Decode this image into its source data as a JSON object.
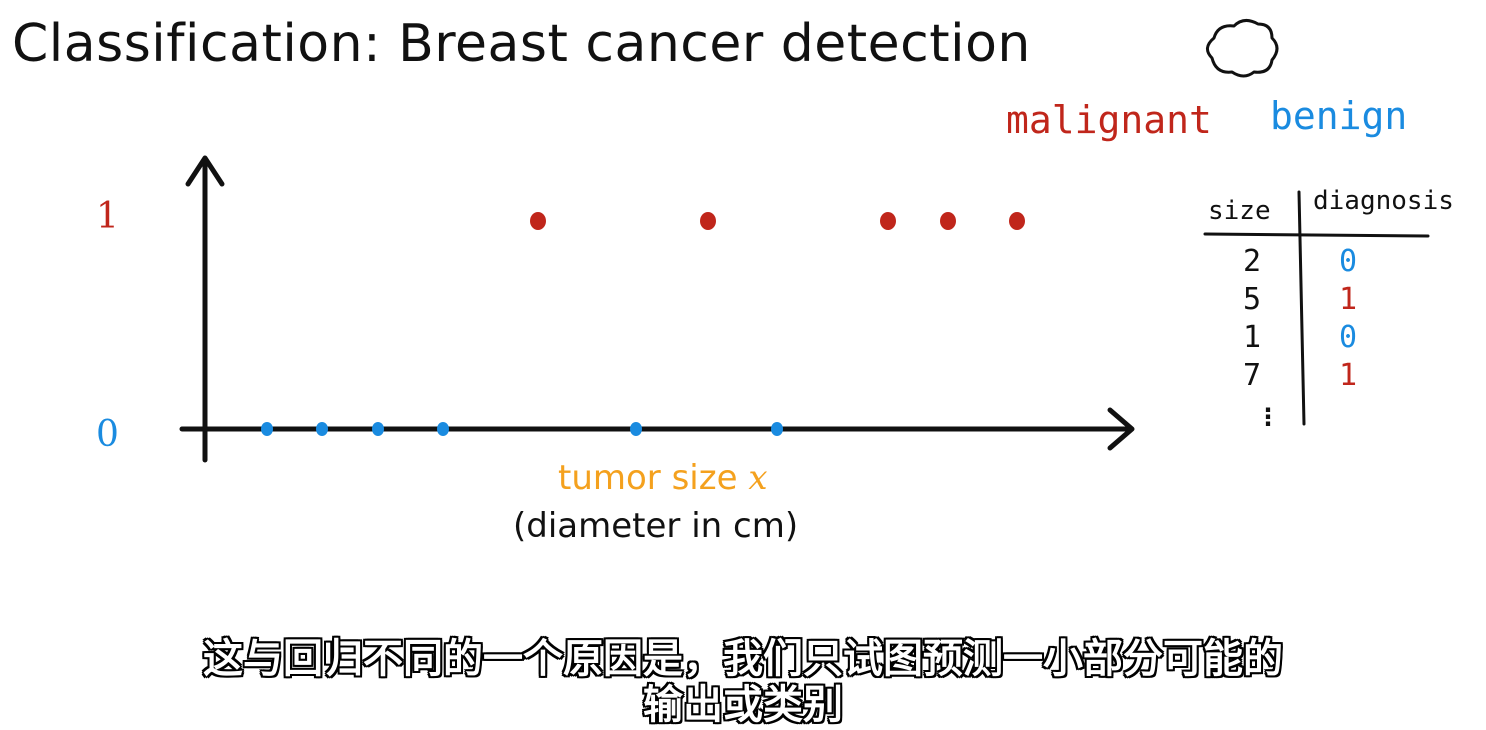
{
  "slide": {
    "title": "Classification: Breast cancer detection",
    "legend": {
      "malignant": "malignant",
      "benign": "benign"
    },
    "colors": {
      "malignant": "#c0261b",
      "benign": "#1a8be0",
      "axis_label": "#f4a11e",
      "ink": "#111111"
    },
    "icons": {
      "top_right": "cloud-doodle-icon"
    }
  },
  "chart_data": {
    "type": "scatter",
    "title": "",
    "xlabel": "tumor size x",
    "xlabel_note": "(diameter in cm)",
    "y_ticks": [
      "1",
      "0"
    ],
    "series": [
      {
        "name": "malignant",
        "x": [
          1,
          2,
          3,
          4,
          5
        ],
        "y": [
          1,
          1,
          1,
          1,
          1
        ]
      },
      {
        "name": "benign",
        "x": [
          1,
          2,
          3,
          4,
          5,
          6
        ],
        "y": [
          0,
          0,
          0,
          0,
          0,
          0
        ]
      }
    ]
  },
  "table": {
    "headers": [
      "size",
      "diagnosis"
    ],
    "rows": [
      {
        "size": "2",
        "diagnosis": "0"
      },
      {
        "size": "5",
        "diagnosis": "1"
      },
      {
        "size": "1",
        "diagnosis": "0"
      },
      {
        "size": "7",
        "diagnosis": "1"
      }
    ],
    "continuation": "⋮"
  },
  "subtitles": {
    "line1": "这与回归不同的一个原因是，我们只试图预测一小部分可能的",
    "line2": "输出或类别"
  }
}
